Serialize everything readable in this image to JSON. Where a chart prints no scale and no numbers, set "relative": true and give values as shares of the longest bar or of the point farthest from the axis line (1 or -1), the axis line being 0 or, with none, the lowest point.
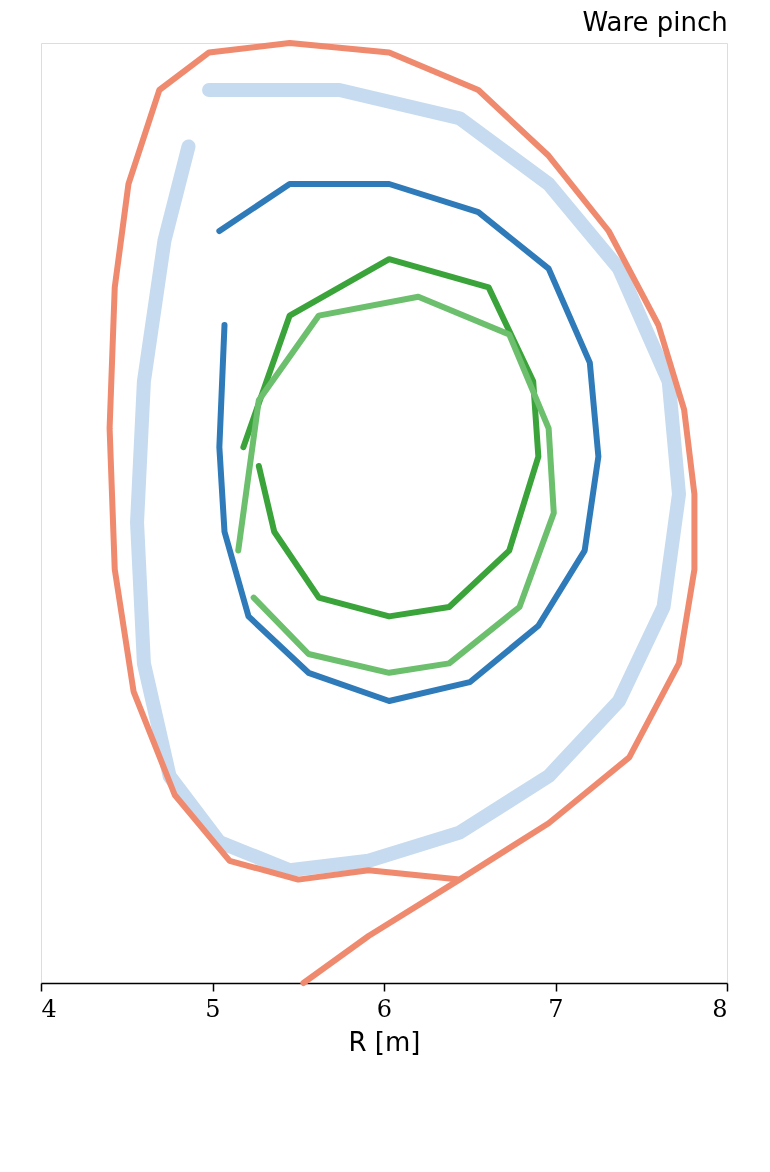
{
  "chart_data": {
    "type": "line",
    "title": "Ware pinch",
    "xlabel": "R [m]",
    "relative": true,
    "xlim": [
      4,
      8
    ],
    "xticks": [
      4,
      5,
      6,
      7,
      8
    ],
    "tick_labels": "x",
    "grid": false,
    "marker": "none",
    "line_style": "solid",
    "series": [
      {
        "color": "#c6dbef",
        "x": [
          4.98,
          5.74,
          6.44,
          6.96,
          7.37,
          7.66,
          7.72,
          7.63,
          7.37,
          6.96,
          6.44,
          5.91,
          5.45,
          5.04,
          4.75,
          4.6,
          4.56,
          4.6,
          4.72,
          4.86
        ],
        "values": [
          0.95,
          0.95,
          0.92,
          0.85,
          0.76,
          0.64,
          0.52,
          0.4,
          0.3,
          0.22,
          0.16,
          0.13,
          0.12,
          0.15,
          0.22,
          0.34,
          0.49,
          0.64,
          0.79,
          0.89
        ]
      },
      {
        "color": "#ef8a6f",
        "x": [
          5.53,
          5.91,
          6.44,
          6.96,
          7.43,
          7.72,
          7.81,
          7.81,
          7.75,
          7.6,
          7.31,
          6.96,
          6.55,
          6.03,
          5.45,
          4.98,
          4.69,
          4.51,
          4.43,
          4.4,
          4.43,
          4.54,
          4.78,
          5.1,
          5.5,
          5.91,
          6.44
        ],
        "values": [
          0.0,
          0.05,
          0.11,
          0.17,
          0.24,
          0.34,
          0.44,
          0.52,
          0.61,
          0.7,
          0.8,
          0.88,
          0.95,
          0.99,
          1.0,
          0.99,
          0.95,
          0.85,
          0.74,
          0.59,
          0.44,
          0.31,
          0.2,
          0.13,
          0.11,
          0.12,
          0.11
        ]
      },
      {
        "color": "#2f7bba",
        "x": [
          5.04,
          5.45,
          6.03,
          6.55,
          6.96,
          7.2,
          7.25,
          7.17,
          6.9,
          6.5,
          6.03,
          5.56,
          5.21,
          5.07,
          5.04,
          5.07
        ],
        "values": [
          0.8,
          0.85,
          0.85,
          0.82,
          0.76,
          0.66,
          0.56,
          0.46,
          0.38,
          0.32,
          0.3,
          0.33,
          0.39,
          0.48,
          0.57,
          0.7
        ]
      },
      {
        "color": "#3aa33a",
        "x": [
          5.18,
          5.45,
          6.03,
          6.61,
          6.87,
          6.9,
          6.73,
          6.38,
          6.03,
          5.62,
          5.36,
          5.27
        ],
        "values": [
          0.57,
          0.71,
          0.77,
          0.74,
          0.64,
          0.56,
          0.46,
          0.4,
          0.39,
          0.41,
          0.48,
          0.55
        ]
      },
      {
        "color": "#6cbf6c",
        "x": [
          5.15,
          5.27,
          5.62,
          6.2,
          6.73,
          6.96,
          6.99,
          6.79,
          6.38,
          6.03,
          5.56,
          5.24
        ],
        "values": [
          0.46,
          0.62,
          0.71,
          0.73,
          0.69,
          0.59,
          0.5,
          0.4,
          0.34,
          0.33,
          0.35,
          0.41
        ]
      }
    ]
  }
}
